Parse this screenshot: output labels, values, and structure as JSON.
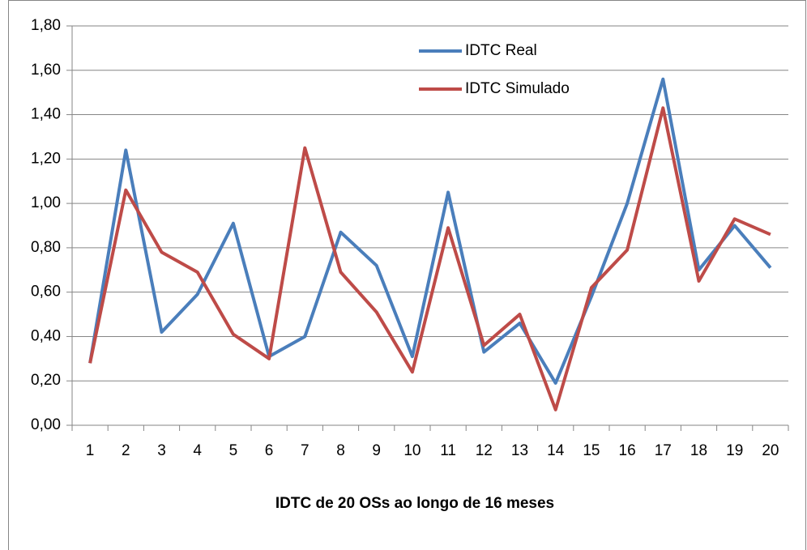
{
  "chart_data": {
    "type": "line",
    "xlabel": "IDTC de 20 OSs ao longo de 16 meses",
    "categories": [
      "1",
      "2",
      "3",
      "4",
      "5",
      "6",
      "7",
      "8",
      "9",
      "10",
      "11",
      "12",
      "13",
      "14",
      "15",
      "16",
      "17",
      "18",
      "19",
      "20"
    ],
    "series": [
      {
        "name": "IDTC Real",
        "color": "#4a7ebb",
        "values": [
          0.28,
          1.24,
          0.42,
          0.59,
          0.91,
          0.31,
          0.4,
          0.87,
          0.72,
          0.31,
          1.05,
          0.33,
          0.46,
          0.19,
          0.58,
          1.0,
          1.56,
          0.7,
          0.9,
          0.71
        ]
      },
      {
        "name": "IDTC Simulado",
        "color": "#be4b48",
        "values": [
          0.28,
          1.06,
          0.78,
          0.69,
          0.41,
          0.3,
          1.25,
          0.69,
          0.51,
          0.24,
          0.89,
          0.36,
          0.5,
          0.07,
          0.62,
          0.79,
          1.43,
          0.65,
          0.93,
          0.86
        ]
      }
    ],
    "ylim": [
      0,
      1.8
    ],
    "yticks": [
      {
        "value": 0,
        "label": "0,00"
      },
      {
        "value": 0.2,
        "label": "0,20"
      },
      {
        "value": 0.4,
        "label": "0,40"
      },
      {
        "value": 0.6,
        "label": "0,60"
      },
      {
        "value": 0.8,
        "label": "0,80"
      },
      {
        "value": 1.0,
        "label": "1,00"
      },
      {
        "value": 1.2,
        "label": "1,20"
      },
      {
        "value": 1.4,
        "label": "1,40"
      },
      {
        "value": 1.6,
        "label": "1,60"
      },
      {
        "value": 1.8,
        "label": "1,80"
      }
    ],
    "grid": true
  }
}
